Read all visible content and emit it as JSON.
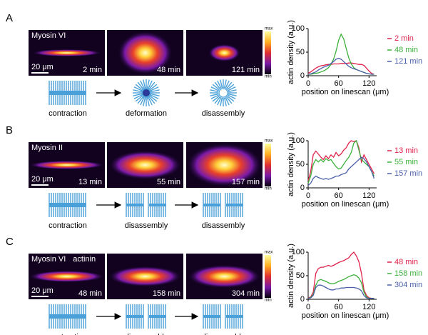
{
  "panels": [
    {
      "label": "A",
      "proteins": [
        "Myosin VI"
      ],
      "scale_bar": "20 μm",
      "times": [
        "2 min",
        "48 min",
        "121 min"
      ],
      "colorbar_max": "max",
      "colorbar_min": "min",
      "schematics": [
        "contraction",
        "deformation",
        "disassembly"
      ]
    },
    {
      "label": "B",
      "proteins": [
        "Myosin II"
      ],
      "scale_bar": "20 μm",
      "times": [
        "13 min",
        "55 min",
        "157 min"
      ],
      "colorbar_max": "max",
      "colorbar_min": "min",
      "schematics": [
        "contraction",
        "disassembly",
        "disassembly"
      ]
    },
    {
      "label": "C",
      "proteins": [
        "Myosin VI",
        "actinin"
      ],
      "scale_bar": "20 μm",
      "times": [
        "48 min",
        "158 min",
        "304 min"
      ],
      "colorbar_max": "max",
      "colorbar_min": "min",
      "schematics": [
        "contraction",
        "disassembly",
        "disassembly"
      ]
    }
  ],
  "chart_data": [
    {
      "type": "line",
      "x_label": "position on linescan (μm)",
      "y_label": "actin density (a.u.)",
      "x": [
        0,
        5,
        10,
        15,
        20,
        25,
        30,
        35,
        40,
        45,
        50,
        55,
        60,
        65,
        70,
        75,
        80,
        85,
        90,
        95,
        100,
        105,
        110,
        115,
        120,
        125,
        130
      ],
      "xlim": [
        0,
        135
      ],
      "xticks": [
        0,
        60,
        120
      ],
      "ylim": [
        0,
        100
      ],
      "yticks": [
        0,
        50,
        100
      ],
      "series": [
        {
          "name": "2 min",
          "color": "#e0204a",
          "values": [
            5,
            8,
            12,
            16,
            19,
            21,
            22,
            23,
            24,
            24,
            25,
            25,
            25,
            26,
            26,
            26,
            27,
            27,
            26,
            25,
            24,
            24,
            22,
            16,
            10,
            5,
            3
          ]
        },
        {
          "name": "48 min",
          "color": "#3bb03b",
          "values": [
            3,
            3,
            4,
            5,
            6,
            8,
            10,
            13,
            17,
            24,
            35,
            52,
            75,
            88,
            78,
            58,
            38,
            25,
            17,
            13,
            11,
            9,
            7,
            5,
            4,
            3,
            3
          ]
        },
        {
          "name": "121 min",
          "color": "#4a5fa8",
          "values": [
            3,
            4,
            6,
            8,
            12,
            15,
            18,
            20,
            22,
            26,
            30,
            35,
            37,
            35,
            30,
            25,
            20,
            17,
            15,
            13,
            11,
            9,
            7,
            5,
            4,
            3,
            3
          ]
        }
      ]
    },
    {
      "type": "line",
      "x_label": "position on linescan (μm)",
      "y_label": "actin density (a.u.)",
      "x": [
        0,
        5,
        10,
        15,
        20,
        25,
        30,
        35,
        40,
        45,
        50,
        55,
        60,
        65,
        70,
        75,
        80,
        85,
        90,
        95,
        100,
        105,
        110,
        115,
        120,
        125,
        130
      ],
      "xlim": [
        0,
        135
      ],
      "xticks": [
        0,
        60,
        120
      ],
      "ylim": [
        0,
        100
      ],
      "yticks": [
        0,
        50,
        100
      ],
      "series": [
        {
          "name": "13 min",
          "color": "#e0204a",
          "values": [
            15,
            35,
            70,
            78,
            72,
            65,
            60,
            68,
            62,
            70,
            65,
            75,
            68,
            72,
            80,
            85,
            95,
            100,
            98,
            100,
            85,
            55,
            70,
            60,
            50,
            40,
            30
          ]
        },
        {
          "name": "55 min",
          "color": "#3bb03b",
          "values": [
            10,
            25,
            50,
            60,
            55,
            60,
            55,
            62,
            58,
            60,
            52,
            45,
            40,
            42,
            50,
            58,
            65,
            75,
            95,
            100,
            80,
            60,
            55,
            50,
            45,
            35,
            25
          ]
        },
        {
          "name": "157 min",
          "color": "#4a5fa8",
          "values": [
            5,
            10,
            20,
            25,
            22,
            20,
            18,
            20,
            18,
            20,
            22,
            25,
            25,
            28,
            30,
            32,
            40,
            45,
            50,
            55,
            60,
            65,
            62,
            55,
            45,
            35,
            20
          ]
        }
      ]
    },
    {
      "type": "line",
      "x_label": "position on linescan (μm)",
      "y_label": "actin density (a.u.)",
      "x": [
        0,
        5,
        10,
        15,
        20,
        25,
        30,
        35,
        40,
        45,
        50,
        55,
        60,
        65,
        70,
        75,
        80,
        85,
        90,
        95,
        100,
        105,
        110,
        115,
        120,
        125,
        130
      ],
      "xlim": [
        0,
        135
      ],
      "xticks": [
        0,
        60,
        120
      ],
      "ylim": [
        0,
        100
      ],
      "yticks": [
        0,
        50,
        100
      ],
      "series": [
        {
          "name": "48 min",
          "color": "#e0204a",
          "values": [
            3,
            5,
            15,
            55,
            65,
            68,
            68,
            70,
            72,
            70,
            72,
            75,
            78,
            80,
            82,
            85,
            88,
            95,
            100,
            92,
            80,
            55,
            20,
            8,
            3,
            2,
            2
          ]
        },
        {
          "name": "158 min",
          "color": "#3bb03b",
          "values": [
            2,
            4,
            10,
            30,
            40,
            42,
            40,
            38,
            35,
            33,
            33,
            35,
            38,
            40,
            42,
            45,
            48,
            50,
            52,
            50,
            45,
            35,
            15,
            5,
            2,
            2,
            2
          ]
        },
        {
          "name": "304 min",
          "color": "#4a5fa8",
          "values": [
            2,
            3,
            8,
            25,
            30,
            30,
            28,
            25,
            22,
            20,
            20,
            22,
            22,
            24,
            24,
            25,
            25,
            25,
            25,
            24,
            22,
            18,
            8,
            3,
            2,
            2,
            2
          ]
        }
      ]
    }
  ]
}
